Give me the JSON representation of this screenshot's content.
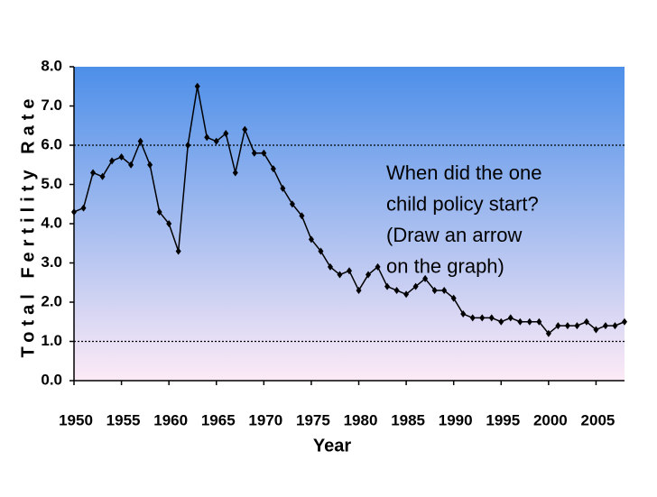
{
  "chart_data": {
    "type": "line",
    "x_label": "Year",
    "y_label": "Total Fertility Rate",
    "annotation": [
      "When did the one",
      "child policy start?",
      "(Draw an arrow",
      "on the graph)"
    ],
    "x": [
      1950,
      1951,
      1952,
      1953,
      1954,
      1955,
      1956,
      1957,
      1958,
      1959,
      1960,
      1961,
      1962,
      1963,
      1964,
      1965,
      1966,
      1967,
      1968,
      1969,
      1970,
      1971,
      1972,
      1973,
      1974,
      1975,
      1976,
      1977,
      1978,
      1979,
      1980,
      1981,
      1982,
      1983,
      1984,
      1985,
      1986,
      1987,
      1988,
      1989,
      1990,
      1991,
      1992,
      1993,
      1994,
      1995,
      1996,
      1997,
      1998,
      1999,
      2000,
      2001,
      2002,
      2003,
      2004,
      2005,
      2006,
      2007,
      2008
    ],
    "series": [
      {
        "color": "#000000",
        "values": [
          4.3,
          4.4,
          5.3,
          5.2,
          5.6,
          5.7,
          5.5,
          6.1,
          5.5,
          4.3,
          4.0,
          3.3,
          6.0,
          7.5,
          6.2,
          6.1,
          6.3,
          5.3,
          6.4,
          5.8,
          5.8,
          5.4,
          4.9,
          4.5,
          4.2,
          3.6,
          3.3,
          2.9,
          2.7,
          2.8,
          2.3,
          2.7,
          2.9,
          2.4,
          2.3,
          2.2,
          2.4,
          2.6,
          2.3,
          2.3,
          2.1,
          1.7,
          1.6,
          1.6,
          1.6,
          1.5,
          1.6,
          1.5,
          1.5,
          1.5,
          1.2,
          1.4,
          1.4,
          1.4,
          1.5,
          1.3,
          1.4,
          1.4,
          1.5
        ]
      }
    ],
    "xlim": [
      1950,
      2008
    ],
    "xticks": [
      1950,
      1955,
      1960,
      1965,
      1970,
      1975,
      1980,
      1985,
      1990,
      1995,
      2000,
      2005
    ],
    "ylim": [
      0,
      8
    ],
    "yticks": [
      {
        "value": 0,
        "label": "0.0"
      },
      {
        "value": 1,
        "label": "1.0"
      },
      {
        "value": 2,
        "label": "2.0"
      },
      {
        "value": 3,
        "label": "3.0"
      },
      {
        "value": 4,
        "label": "4.0"
      },
      {
        "value": 5,
        "label": "5.0"
      },
      {
        "value": 6,
        "label": "6.0"
      },
      {
        "value": 7,
        "label": "7.0"
      },
      {
        "value": 8,
        "label": "8.0"
      }
    ],
    "reference_lines": [
      6,
      1
    ],
    "background_gradient": [
      "#4d8fe9",
      "#fdeaf6"
    ]
  }
}
